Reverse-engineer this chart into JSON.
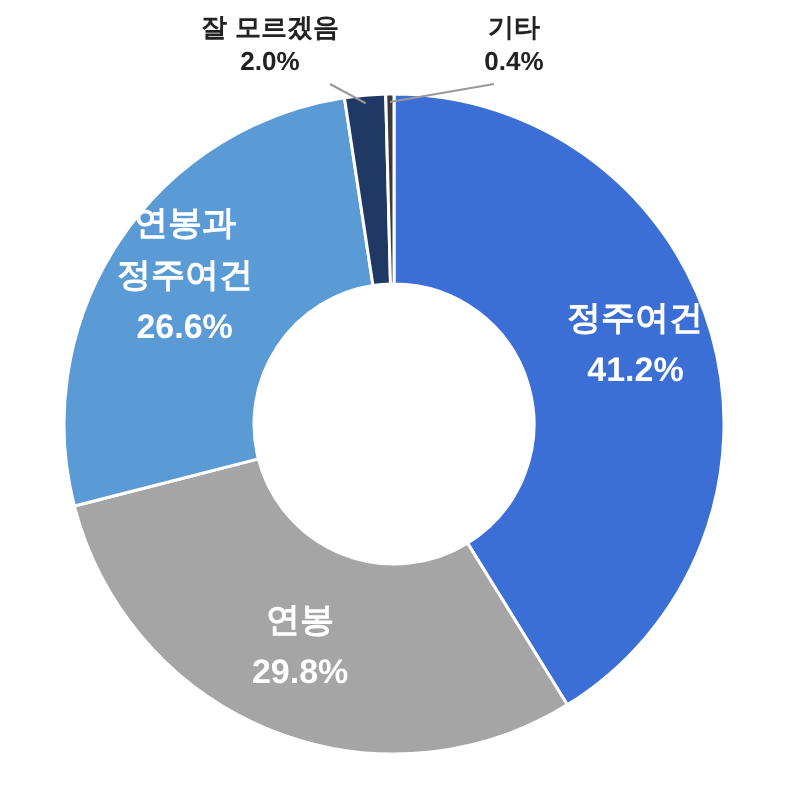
{
  "chart_data": {
    "type": "donut",
    "categories": [
      "정주여건",
      "연봉",
      "연봉과 정주여건",
      "잘 모르겠음",
      "기타"
    ],
    "values": [
      41.2,
      29.8,
      26.6,
      2.0,
      0.4
    ],
    "value_labels": [
      "41.2%",
      "29.8%",
      "26.6%",
      "2.0%",
      "0.4%"
    ],
    "colors": [
      "#3b6fd6",
      "#a5a5a5",
      "#5b9bd5",
      "#1f3864",
      "#3a3a3a"
    ]
  }
}
